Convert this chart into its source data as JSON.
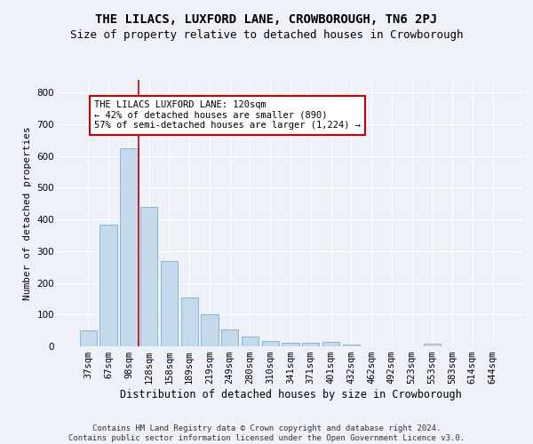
{
  "title": "THE LILACS, LUXFORD LANE, CROWBOROUGH, TN6 2PJ",
  "subtitle": "Size of property relative to detached houses in Crowborough",
  "xlabel": "Distribution of detached houses by size in Crowborough",
  "ylabel": "Number of detached properties",
  "categories": [
    "37sqm",
    "67sqm",
    "98sqm",
    "128sqm",
    "158sqm",
    "189sqm",
    "219sqm",
    "249sqm",
    "280sqm",
    "310sqm",
    "341sqm",
    "371sqm",
    "401sqm",
    "432sqm",
    "462sqm",
    "492sqm",
    "523sqm",
    "553sqm",
    "583sqm",
    "614sqm",
    "644sqm"
  ],
  "values": [
    50,
    385,
    625,
    440,
    270,
    155,
    100,
    53,
    30,
    18,
    10,
    10,
    13,
    5,
    0,
    0,
    0,
    8,
    0,
    0,
    0
  ],
  "bar_color": "#c5d9ed",
  "bar_edge_color": "#8ab4d4",
  "vline_color": "#cc0000",
  "vline_x": 2.5,
  "annotation_text": "THE LILACS LUXFORD LANE: 120sqm\n← 42% of detached houses are smaller (890)\n57% of semi-detached houses are larger (1,224) →",
  "annotation_box_color": "#ffffff",
  "annotation_box_edge": "#cc0000",
  "ylim": [
    0,
    840
  ],
  "yticks": [
    0,
    100,
    200,
    300,
    400,
    500,
    600,
    700,
    800
  ],
  "footer_line1": "Contains HM Land Registry data © Crown copyright and database right 2024.",
  "footer_line2": "Contains public sector information licensed under the Open Government Licence v3.0.",
  "bg_color": "#eef2f8",
  "plot_bg_color": "#eef2f8",
  "grid_color": "#ffffff",
  "title_fontsize": 10,
  "subtitle_fontsize": 9,
  "xlabel_fontsize": 8.5,
  "ylabel_fontsize": 8,
  "tick_fontsize": 7.5,
  "footer_fontsize": 6.5,
  "annotation_fontsize": 7.5
}
